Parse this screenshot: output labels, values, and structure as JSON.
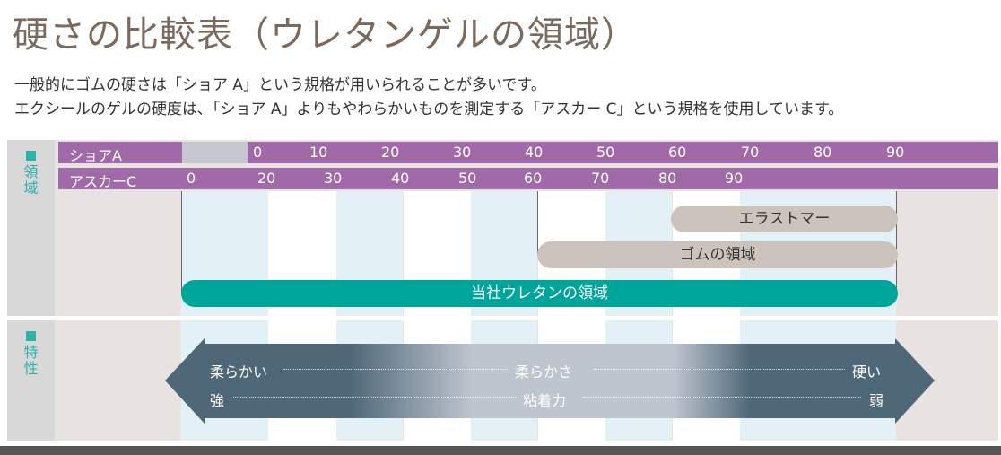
{
  "title": "硬さの比較表（ウレタンゲルの領域）",
  "description": [
    "一般的にゴムの硬さは「ショア A」という規格が用いられることが多いです。",
    "エクシールのゲルの硬度は､「ショア A」よりもやわらかいものを測定する「アスカー C」という規格を使用しています。"
  ],
  "sections": {
    "area": {
      "marker": "■",
      "label_chars": [
        "領",
        "域"
      ]
    },
    "property": {
      "marker": "■",
      "label_chars": [
        "特",
        "性"
      ]
    }
  },
  "scales": {
    "shore_a": {
      "label": "ショアA",
      "ticks": [
        "0",
        "10",
        "20",
        "30",
        "40",
        "50",
        "60",
        "70",
        "80",
        "90"
      ]
    },
    "asker_c": {
      "label": "アスカーC",
      "ticks": [
        "0",
        "20",
        "30",
        "40",
        "50",
        "60",
        "70",
        "80",
        "90"
      ]
    }
  },
  "regions": {
    "elastomer": "エラストマー",
    "rubber": "ゴムの領域",
    "urethane": "当社ウレタンの領域"
  },
  "characteristics": {
    "left_top": "柔らかい",
    "center_top": "柔らかさ",
    "right_top": "硬い",
    "left_bottom": "強",
    "center_bottom": "粘着力",
    "right_bottom": "弱"
  },
  "colors": {
    "title": "#7a6a5d",
    "scale_row": "#a06aa9",
    "accent": "#00a599",
    "region_gray": "#cbc3bc",
    "arrow_dark": "#4f6878",
    "arrow_light": "#bfc5cf"
  }
}
